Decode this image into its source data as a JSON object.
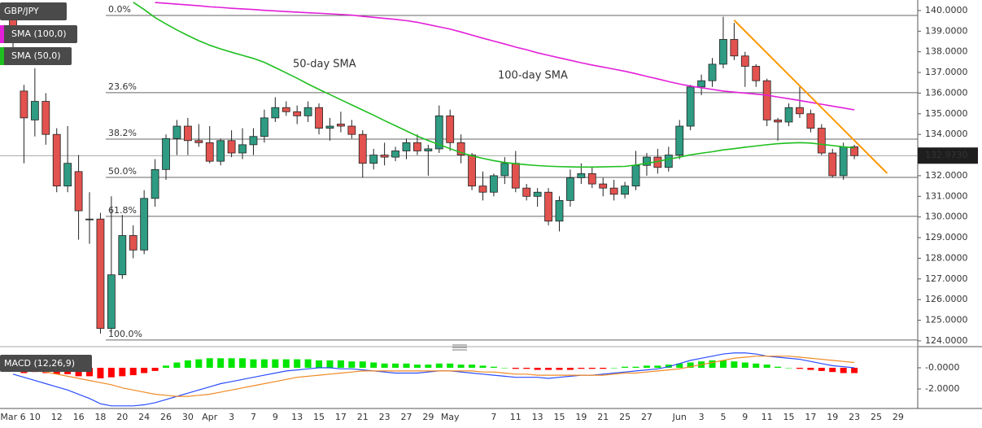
{
  "chart_data": [
    {
      "type": "candlestick",
      "title": "GBP/JPY",
      "categories": [
        "Mar 6",
        null,
        "10",
        null,
        "12",
        null,
        "16",
        null,
        "18",
        null,
        "20",
        null,
        "24",
        null,
        "26",
        null,
        "30",
        null,
        "Apr",
        null,
        "3",
        null,
        "7",
        null,
        "9",
        null,
        "13",
        null,
        "15",
        null,
        "17",
        null,
        "21",
        null,
        "23",
        null,
        "27",
        null,
        "29",
        null,
        "May",
        null,
        null,
        null,
        "7",
        null,
        "11",
        null,
        "13",
        null,
        "15",
        null,
        "19",
        null,
        "21",
        null,
        "25",
        null,
        "27",
        null,
        null,
        "Jun",
        null,
        "3",
        null,
        "5",
        null,
        "9",
        null,
        "11",
        null,
        "15",
        null,
        "17",
        null,
        "19",
        null,
        "23",
        null,
        "25",
        null,
        "29"
      ],
      "open": [
        139.6,
        136.1,
        134.7,
        135.6,
        134.0,
        131.5,
        132.2,
        129.9,
        129.9,
        124.6,
        127.2,
        129.1,
        128.4,
        130.9,
        132.3,
        133.8,
        134.4,
        133.7,
        133.6,
        132.7,
        133.7,
        133.1,
        133.5,
        133.9,
        134.8,
        135.3,
        135.1,
        134.9,
        135.3,
        134.3,
        134.5,
        134.4,
        134.0,
        132.6,
        133.0,
        132.9,
        133.2,
        133.6,
        133.2,
        133.3,
        134.9,
        133.6,
        133.0,
        131.5,
        131.2,
        132.0,
        132.6,
        131.4,
        131.0,
        131.2,
        129.8,
        130.8,
        131.9,
        132.1,
        131.6,
        131.4,
        131.1,
        131.5,
        132.5,
        132.9,
        132.4,
        133.0,
        134.4,
        136.3,
        136.6,
        137.4,
        138.6,
        137.8,
        137.3,
        136.6,
        134.7,
        134.6,
        135.3,
        135.0,
        134.3,
        133.1,
        132.0,
        133.4,
        null,
        null,
        null,
        null
      ],
      "high": [
        139.9,
        136.4,
        137.2,
        136.0,
        134.3,
        134.4,
        133.0,
        131.2,
        130.2,
        131.0,
        130.1,
        129.6,
        131.3,
        132.8,
        134.0,
        134.7,
        134.8,
        134.5,
        134.4,
        133.8,
        134.2,
        134.3,
        134.3,
        135.2,
        135.8,
        135.6,
        135.4,
        135.6,
        135.5,
        134.8,
        135.1,
        134.7,
        134.2,
        133.3,
        133.6,
        133.4,
        133.8,
        134.0,
        133.5,
        135.4,
        135.2,
        134.0,
        133.1,
        132.2,
        132.1,
        132.9,
        133.2,
        131.6,
        131.4,
        131.4,
        131.0,
        132.3,
        132.6,
        132.4,
        131.9,
        131.8,
        131.7,
        133.2,
        133.1,
        133.3,
        133.4,
        134.7,
        136.4,
        136.9,
        137.7,
        139.7,
        139.4,
        138.0,
        137.4,
        136.7,
        134.8,
        135.5,
        136.3,
        135.2,
        134.5,
        133.3,
        133.6,
        133.5,
        null,
        null,
        null,
        null
      ],
      "low": [
        137.5,
        132.6,
        133.9,
        133.5,
        131.2,
        131.2,
        128.9,
        128.7,
        124.35,
        124.4,
        127.0,
        128.0,
        128.2,
        130.5,
        131.8,
        133.0,
        133.0,
        133.4,
        132.6,
        132.5,
        132.9,
        132.8,
        133.0,
        133.6,
        134.6,
        134.9,
        134.5,
        134.6,
        134.0,
        133.7,
        134.1,
        133.8,
        131.9,
        132.3,
        132.5,
        132.7,
        132.8,
        133.0,
        132.0,
        133.1,
        133.2,
        132.6,
        131.3,
        130.8,
        131.0,
        131.6,
        131.2,
        130.8,
        130.5,
        129.6,
        129.3,
        130.5,
        131.6,
        131.4,
        131.0,
        130.8,
        130.9,
        131.3,
        132.0,
        132.1,
        132.2,
        132.8,
        134.2,
        135.9,
        136.3,
        137.2,
        137.6,
        136.3,
        136.3,
        134.4,
        133.7,
        134.4,
        134.8,
        134.1,
        133.0,
        131.9,
        131.8,
        132.8,
        null,
        null,
        null,
        null
      ],
      "close": [
        138.6,
        134.8,
        135.6,
        134.0,
        131.5,
        132.6,
        130.3,
        129.9,
        124.6,
        127.2,
        129.1,
        128.4,
        130.9,
        132.3,
        133.8,
        134.4,
        133.7,
        133.6,
        132.7,
        133.7,
        133.1,
        133.5,
        133.9,
        134.8,
        135.3,
        135.1,
        134.9,
        135.3,
        134.3,
        134.4,
        134.4,
        134.0,
        132.6,
        133.0,
        132.9,
        133.2,
        133.6,
        133.2,
        133.3,
        134.9,
        133.6,
        133.0,
        131.5,
        131.2,
        132.0,
        132.6,
        131.4,
        131.0,
        131.2,
        129.8,
        130.8,
        131.9,
        132.1,
        131.6,
        131.4,
        131.1,
        131.5,
        132.5,
        132.9,
        132.4,
        133.0,
        134.4,
        136.3,
        136.6,
        137.4,
        138.6,
        137.8,
        137.3,
        136.6,
        134.7,
        134.6,
        135.3,
        135.0,
        134.3,
        133.1,
        132.0,
        133.4,
        132.97,
        null,
        null,
        null,
        null
      ],
      "up_color": "#2e9b82",
      "down_color": "#e2524e",
      "series": [
        {
          "name": "SMA (100,0)",
          "color": "#e21fd9",
          "values": [
            null,
            null,
            null,
            null,
            null,
            null,
            null,
            null,
            null,
            null,
            null,
            null,
            null,
            140.39,
            140.35,
            140.31,
            140.27,
            140.23,
            140.18,
            140.15,
            140.11,
            140.08,
            140.05,
            140.01,
            139.98,
            139.95,
            139.92,
            139.89,
            139.87,
            139.84,
            139.81,
            139.78,
            139.72,
            139.67,
            139.62,
            139.57,
            139.51,
            139.43,
            139.32,
            139.21,
            139.1,
            138.96,
            138.81,
            138.66,
            138.52,
            138.38,
            138.23,
            138.1,
            137.95,
            137.83,
            137.71,
            137.59,
            137.47,
            137.36,
            137.26,
            137.16,
            137.06,
            136.94,
            136.81,
            136.69,
            136.56,
            136.44,
            136.34,
            136.26,
            136.18,
            136.1,
            136.05,
            136.0,
            135.95,
            135.9,
            135.81,
            135.73,
            135.64,
            135.55,
            135.46,
            135.37,
            135.28,
            135.19,
            null,
            null,
            null,
            null
          ]
        },
        {
          "name": "SMA (50,0)",
          "color": "#1fbf1f",
          "values": [
            null,
            null,
            null,
            null,
            null,
            null,
            null,
            null,
            null,
            null,
            null,
            140.4,
            140.05,
            139.66,
            139.35,
            139.06,
            138.79,
            138.54,
            138.32,
            138.14,
            137.98,
            137.83,
            137.68,
            137.49,
            137.24,
            136.98,
            136.72,
            136.44,
            136.18,
            135.93,
            135.68,
            135.43,
            135.18,
            134.93,
            134.67,
            134.42,
            134.17,
            133.92,
            133.7,
            133.51,
            133.31,
            133.12,
            132.96,
            132.84,
            132.73,
            132.64,
            132.58,
            132.53,
            132.49,
            132.46,
            132.44,
            132.43,
            132.42,
            132.42,
            132.43,
            132.44,
            132.45,
            132.52,
            132.6,
            132.69,
            132.8,
            132.9,
            133.01,
            133.09,
            133.16,
            133.25,
            133.31,
            133.38,
            133.44,
            133.5,
            133.55,
            133.58,
            133.6,
            133.58,
            133.52,
            133.46,
            133.4,
            133.35,
            null,
            null,
            null,
            null
          ]
        }
      ],
      "annotations": [
        {
          "text": "50-day SMA",
          "color": "#1fbf1f"
        },
        {
          "text": "100-day SMA",
          "color": "#e21fd9"
        }
      ],
      "fibonacci": [
        {
          "label": "0.0%",
          "price": 139.76
        },
        {
          "label": "23.6%",
          "price": 136.02
        },
        {
          "label": "38.2%",
          "price": 133.77
        },
        {
          "label": "50.0%",
          "price": 131.92
        },
        {
          "label": "61.8%",
          "price": 130.03
        },
        {
          "label": "100.0%",
          "price": 124.04
        }
      ],
      "trendline": {
        "color": "#ff9800",
        "index": [
          66,
          80
        ],
        "values": [
          139.53,
          132.12
        ]
      },
      "last_price": {
        "value": 132.973,
        "label": "132.9730"
      },
      "ylim": [
        123.76,
        140.51
      ],
      "yticks": [
        {
          "value": 124,
          "label": "124.0000"
        },
        {
          "value": 125,
          "label": "125.0000"
        },
        {
          "value": 126,
          "label": "126.0000"
        },
        {
          "value": 127,
          "label": "127.0000"
        },
        {
          "value": 128,
          "label": "128.0000"
        },
        {
          "value": 129,
          "label": "129.0000"
        },
        {
          "value": 130,
          "label": "130.0000"
        },
        {
          "value": 131,
          "label": "131.0000"
        },
        {
          "value": 132,
          "label": "132.0000"
        },
        {
          "value": 133,
          "label": "133.0000"
        },
        {
          "value": 134,
          "label": "134.0000"
        },
        {
          "value": 135,
          "label": "135.0000"
        },
        {
          "value": 136,
          "label": "136.0000"
        },
        {
          "value": 137,
          "label": "137.0000"
        },
        {
          "value": 138,
          "label": "138.0000"
        },
        {
          "value": 139,
          "label": "139.0000"
        },
        {
          "value": 140,
          "label": "140.0000"
        }
      ]
    },
    {
      "type": "macd",
      "title": "MACD (12,26,9)",
      "histogram": [
        -0.3,
        -0.5,
        -0.4,
        -0.5,
        -0.6,
        -0.6,
        -0.8,
        -0.8,
        -1.0,
        -0.9,
        -0.8,
        -0.7,
        -0.5,
        -0.3,
        0.2,
        0.5,
        0.7,
        0.8,
        0.9,
        0.9,
        0.9,
        0.9,
        0.8,
        0.8,
        0.8,
        0.8,
        0.8,
        0.8,
        0.7,
        0.7,
        0.7,
        0.6,
        0.6,
        0.5,
        0.4,
        0.4,
        0.4,
        0.3,
        0.3,
        0.4,
        0.4,
        0.3,
        0.3,
        0.2,
        0.1,
        0.0,
        -0.1,
        -0.1,
        -0.2,
        -0.2,
        -0.2,
        -0.2,
        -0.1,
        -0.1,
        -0.1,
        0.0,
        0.1,
        0.1,
        0.2,
        0.2,
        0.3,
        0.4,
        0.5,
        0.6,
        0.7,
        0.7,
        0.6,
        0.5,
        0.4,
        0.3,
        0.1,
        0.0,
        -0.1,
        -0.2,
        -0.3,
        -0.4,
        -0.5,
        -0.5
      ],
      "up_color": "#00e600",
      "down_color": "#ff0000",
      "macd": {
        "color": "#2a4dff",
        "values": [
          -0.6,
          -0.9,
          -1.2,
          -1.5,
          -1.8,
          -2.1,
          -2.5,
          -2.9,
          -3.4,
          -3.6,
          -3.6,
          -3.6,
          -3.5,
          -3.3,
          -3.0,
          -2.7,
          -2.4,
          -2.1,
          -1.8,
          -1.5,
          -1.3,
          -1.1,
          -0.9,
          -0.7,
          -0.5,
          -0.3,
          -0.2,
          -0.1,
          0.0,
          0.0,
          -0.1,
          -0.1,
          -0.2,
          -0.3,
          -0.4,
          -0.5,
          -0.5,
          -0.5,
          -0.4,
          -0.3,
          -0.3,
          -0.4,
          -0.5,
          -0.6,
          -0.7,
          -0.8,
          -0.9,
          -0.9,
          -0.9,
          -1.0,
          -0.9,
          -0.8,
          -0.7,
          -0.7,
          -0.6,
          -0.5,
          -0.4,
          -0.3,
          -0.2,
          -0.1,
          0.1,
          0.4,
          0.7,
          0.9,
          1.1,
          1.3,
          1.4,
          1.4,
          1.3,
          1.1,
          1.0,
          0.9,
          0.8,
          0.6,
          0.4,
          0.2,
          0.1,
          0.0
        ]
      },
      "signal": {
        "color": "#f08a24",
        "values": [
          0.0,
          -0.1,
          -0.3,
          -0.4,
          -0.6,
          -0.8,
          -1.0,
          -1.2,
          -1.4,
          -1.6,
          -1.9,
          -2.1,
          -2.3,
          -2.5,
          -2.6,
          -2.7,
          -2.7,
          -2.6,
          -2.5,
          -2.3,
          -2.1,
          -1.9,
          -1.7,
          -1.5,
          -1.3,
          -1.1,
          -0.9,
          -0.8,
          -0.7,
          -0.6,
          -0.5,
          -0.4,
          -0.3,
          -0.3,
          -0.3,
          -0.3,
          -0.3,
          -0.3,
          -0.3,
          -0.3,
          -0.3,
          -0.3,
          -0.3,
          -0.4,
          -0.4,
          -0.5,
          -0.6,
          -0.6,
          -0.7,
          -0.7,
          -0.7,
          -0.7,
          -0.7,
          -0.7,
          -0.7,
          -0.6,
          -0.5,
          -0.5,
          -0.4,
          -0.3,
          -0.2,
          -0.1,
          0.1,
          0.3,
          0.5,
          0.7,
          0.9,
          1.0,
          1.1,
          1.1,
          1.1,
          1.1,
          1.0,
          0.9,
          0.8,
          0.7,
          0.6,
          0.5
        ]
      },
      "ylim": [
        -3.69,
        1.69
      ],
      "yticks": [
        {
          "value": 0,
          "label": "-0.0000"
        },
        {
          "value": -2,
          "label": "-2.0000"
        }
      ]
    }
  ]
}
